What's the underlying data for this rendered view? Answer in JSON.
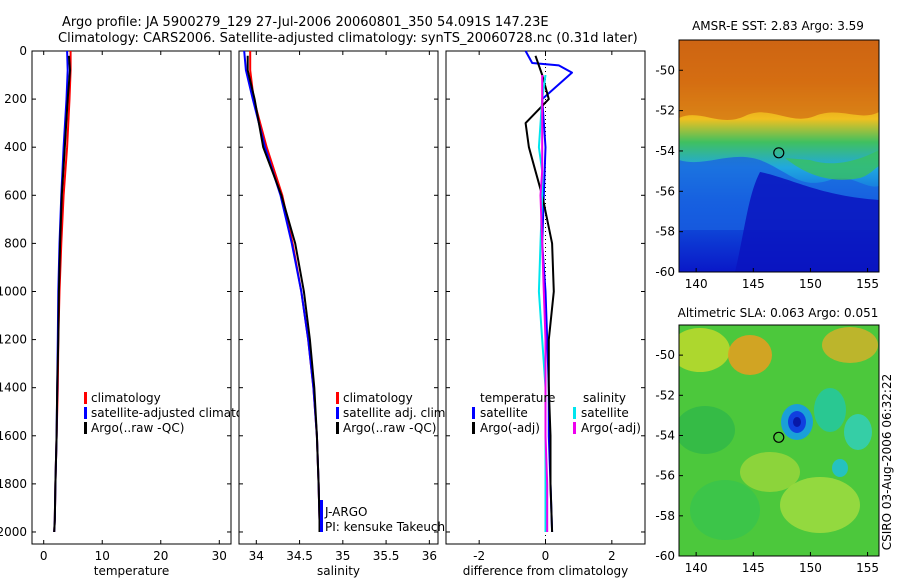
{
  "header": {
    "line1": "Argo profile: JA 5900279_129 27-Jul-2006 20060801_350 54.091S 147.23E",
    "line2": "Climatology: CARS2006. Satellite-adjusted climatology: synTS_20060728.nc (0.31d later)"
  },
  "side_stamp": "CSIRO 03-Aug-2006 06:32:22",
  "colors": {
    "red": "#ff0000",
    "blue": "#0000ff",
    "black": "#000000",
    "cyan": "#00e5ee",
    "magenta": "#ee00ee"
  },
  "chart_data": [
    {
      "id": "temperature",
      "type": "line",
      "xlabel": "temperature",
      "xlim": [
        -2,
        32
      ],
      "ylim": [
        0,
        2050
      ],
      "xticks": [
        0,
        10,
        20,
        30
      ],
      "yticks": [
        0,
        200,
        400,
        600,
        800,
        1000,
        1200,
        1400,
        1600,
        1800,
        2000
      ],
      "legend": [
        "climatology",
        "satellite-adjusted climatology",
        "Argo(..raw -QC)"
      ],
      "series": [
        {
          "name": "climatology",
          "color": "#ff0000",
          "x": [
            4.6,
            4.6,
            4.4,
            4.0,
            3.4,
            3.0,
            2.7,
            2.5,
            2.4,
            2.2,
            2.0,
            1.9,
            1.8
          ],
          "y": [
            0,
            80,
            200,
            400,
            600,
            800,
            1000,
            1200,
            1400,
            1600,
            1800,
            1950,
            2000
          ]
        },
        {
          "name": "satellite-adjusted climatology",
          "color": "#0000ff",
          "x": [
            4.0,
            4.1,
            3.9,
            3.4,
            3.0,
            2.7,
            2.5,
            2.4,
            2.3,
            2.2,
            2.0,
            1.9,
            1.8
          ],
          "y": [
            0,
            80,
            200,
            400,
            600,
            800,
            1000,
            1200,
            1400,
            1600,
            1800,
            1950,
            2000
          ]
        },
        {
          "name": "Argo(..raw -QC)",
          "color": "#000000",
          "x": [
            4.3,
            4.5,
            4.1,
            3.6,
            3.1,
            2.8,
            2.6,
            2.5,
            2.3,
            2.2,
            2.0,
            1.9,
            1.8
          ],
          "y": [
            20,
            80,
            200,
            400,
            600,
            800,
            1000,
            1200,
            1400,
            1600,
            1800,
            1950,
            2000
          ]
        }
      ]
    },
    {
      "id": "salinity",
      "type": "line",
      "xlabel": "salinity",
      "xlim": [
        33.8,
        36.1
      ],
      "ylim": [
        0,
        2050
      ],
      "xticks": [
        34,
        34.5,
        35,
        35.5,
        36
      ],
      "xtick_labels": [
        "34",
        "34.5",
        "35",
        "35.5",
        "36"
      ],
      "legend": [
        "climatology",
        "satellite adj. clim.",
        "Argo(..raw -QC)"
      ],
      "annotation": [
        "J-ARGO",
        "PI: kensuke Takeuchi"
      ],
      "series": [
        {
          "name": "climatology",
          "color": "#ff0000",
          "x": [
            33.93,
            33.93,
            33.97,
            34.12,
            34.3,
            34.42,
            34.52,
            34.6,
            34.66,
            34.7,
            34.72,
            34.73,
            34.73
          ],
          "y": [
            0,
            80,
            200,
            400,
            600,
            800,
            1000,
            1200,
            1400,
            1600,
            1800,
            1950,
            2000
          ]
        },
        {
          "name": "satellite adj. clim.",
          "color": "#0000ff",
          "x": [
            33.86,
            33.88,
            33.96,
            34.1,
            34.28,
            34.41,
            34.52,
            34.6,
            34.66,
            34.7,
            34.72,
            34.73,
            34.73
          ],
          "y": [
            0,
            80,
            200,
            400,
            600,
            800,
            1000,
            1200,
            1400,
            1600,
            1800,
            1950,
            2000
          ]
        },
        {
          "name": "Argo(..raw -QC)",
          "color": "#000000",
          "x": [
            33.9,
            33.9,
            33.98,
            34.08,
            34.29,
            34.45,
            34.55,
            34.62,
            34.67,
            34.7,
            34.72,
            34.73,
            34.73
          ],
          "y": [
            20,
            80,
            200,
            400,
            600,
            800,
            1000,
            1200,
            1400,
            1600,
            1800,
            1950,
            2000
          ]
        }
      ]
    },
    {
      "id": "difference",
      "type": "line",
      "xlabel": "difference from climatology",
      "xlim": [
        -3,
        3
      ],
      "ylim": [
        0,
        2050
      ],
      "xticks": [
        -2,
        0,
        2
      ],
      "legend_left_title": "temperature",
      "legend_right_title": "salinity",
      "legend_left": [
        "satellite",
        "Argo(-adj)"
      ],
      "legend_right": [
        "satellite",
        "Argo(-adj)"
      ],
      "series": [
        {
          "name": "temperature satellite",
          "color": "#0000ff",
          "x": [
            -0.6,
            -0.4,
            0.4,
            0.8,
            -0.1,
            0.0,
            -0.05,
            -0.1,
            0.0,
            0.05,
            0.1,
            0.1,
            0.15,
            0.2
          ],
          "y": [
            0,
            50,
            60,
            90,
            200,
            400,
            600,
            800,
            1000,
            1200,
            1400,
            1600,
            1800,
            2000
          ]
        },
        {
          "name": "temperature Argo(-adj)",
          "color": "#000000",
          "x": [
            -0.3,
            -0.1,
            0.1,
            -0.6,
            -0.5,
            -0.3,
            -0.1,
            0.2,
            0.25,
            0.1,
            0.1,
            0.15,
            0.15,
            0.2
          ],
          "y": [
            20,
            100,
            200,
            300,
            400,
            500,
            600,
            800,
            1000,
            1200,
            1400,
            1600,
            1800,
            2000
          ]
        },
        {
          "name": "salinity satellite",
          "color": "#00e5ee",
          "x": [
            0.0,
            -0.1,
            -0.2,
            -0.1,
            -0.1,
            -0.15,
            -0.2,
            -0.1,
            0.0,
            0.0,
            0.0,
            0.0,
            0.0
          ],
          "y": [
            100,
            200,
            400,
            500,
            600,
            800,
            1000,
            1200,
            1400,
            1600,
            1800,
            1950,
            2000
          ]
        },
        {
          "name": "salinity Argo(-adj)",
          "color": "#ee00ee",
          "x": [
            -0.1,
            -0.1,
            -0.1,
            -0.15,
            -0.1,
            -0.05,
            0.0,
            0.0,
            0.0,
            0.05,
            0.05,
            0.05
          ],
          "y": [
            100,
            300,
            500,
            600,
            800,
            1000,
            1200,
            1400,
            1600,
            1800,
            1950,
            2000
          ]
        }
      ]
    },
    {
      "id": "sst_map",
      "type": "heatmap",
      "title": "AMSR-E SST: 2.83 Argo: 3.59",
      "xlim": [
        138.5,
        156
      ],
      "ylim": [
        -60,
        -48.5
      ],
      "xticks": [
        140,
        145,
        150,
        155
      ],
      "yticks": [
        -50,
        -52,
        -54,
        -56,
        -58,
        -60
      ],
      "marker": {
        "lon": 147.23,
        "lat": -54.091
      }
    },
    {
      "id": "sla_map",
      "type": "heatmap",
      "title": "Altimetric SLA: 0.063 Argo: 0.051",
      "xlim": [
        138.5,
        156
      ],
      "ylim": [
        -60,
        -48.5
      ],
      "xticks": [
        140,
        145,
        150,
        155
      ],
      "yticks": [
        -50,
        -52,
        -54,
        -56,
        -58,
        -60
      ],
      "marker": {
        "lon": 147.23,
        "lat": -54.091
      }
    }
  ]
}
